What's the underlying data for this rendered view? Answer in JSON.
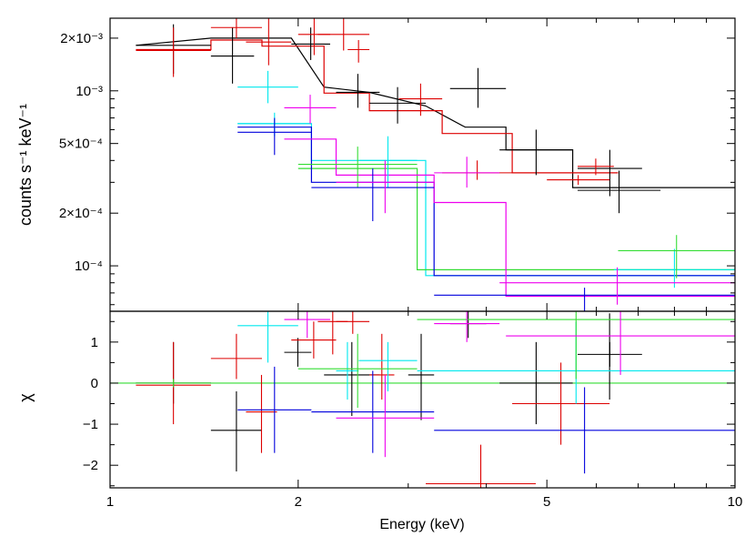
{
  "chart_data": {
    "type": "scatter",
    "xlabel": "Energy (keV)",
    "xscale": "log",
    "xlim": [
      1,
      10
    ],
    "xticks": [
      1,
      2,
      5,
      10
    ],
    "xtick_labels": [
      "1",
      "2",
      "5",
      "10"
    ],
    "top_panel": {
      "ylabel": "counts s⁻¹ keV⁻¹",
      "yscale": "log",
      "ylim": [
        5.5e-05,
        0.0026
      ],
      "yticks": [
        0.0001,
        0.0002,
        0.0005,
        0.001,
        0.002
      ],
      "ytick_labels": [
        "10⁻⁴",
        "2×10⁻⁴",
        "5×10⁻⁴",
        "10⁻³",
        "2×10⁻³"
      ],
      "series": [
        {
          "name": "black",
          "color": "#000000",
          "points": [
            [
              1.1,
              1.45,
              0.00182,
              0.00125,
              0.0024
            ],
            [
              1.45,
              1.7,
              0.00158,
              0.0011,
              0.0023
            ],
            [
              1.95,
              2.25,
              0.00185,
              0.0015,
              0.0023
            ],
            [
              2.3,
              2.7,
              0.00098,
              0.0008,
              0.00125
            ],
            [
              2.6,
              3.2,
              0.00085,
              0.00065,
              0.00105
            ],
            [
              3.5,
              4.3,
              0.00103,
              0.0008,
              0.00135
            ],
            [
              4.2,
              5.5,
              0.00046,
              0.00033,
              0.0006
            ],
            [
              5.6,
              7.6,
              0.00027,
              0.0002,
              0.00035
            ],
            [
              5.6,
              7.1,
              0.00036,
              0.00025,
              0.00046
            ]
          ],
          "model": [
            [
              1.1,
              0.00182
            ],
            [
              1.45,
              0.002
            ],
            [
              1.7,
              0.002
            ],
            [
              1.95,
              0.002
            ],
            [
              2.2,
              0.00105
            ],
            [
              2.6,
              0.00098
            ],
            [
              3.2,
              0.00082
            ],
            [
              3.7,
              0.00062
            ],
            [
              4.3,
              0.00062
            ],
            [
              4.3,
              0.00046
            ],
            [
              5.5,
              0.00046
            ],
            [
              5.5,
              0.00028
            ],
            [
              10,
              0.00028
            ]
          ]
        },
        {
          "name": "red",
          "color": "#dd0000",
          "points": [
            [
              1.1,
              1.45,
              0.0017,
              0.0012,
              0.0023
            ],
            [
              1.45,
              1.75,
              0.0023,
              0.002,
              0.0027
            ],
            [
              1.65,
              1.95,
              0.0019,
              0.0014,
              0.0026
            ],
            [
              2.0,
              2.25,
              0.0021,
              0.0016,
              0.003
            ],
            [
              2.15,
              2.6,
              0.0021,
              0.0017,
              0.0026
            ],
            [
              2.4,
              2.6,
              0.00172,
              0.00145,
              0.00195
            ],
            [
              2.9,
              3.4,
              0.0009,
              0.00072,
              0.0011
            ],
            [
              3.4,
              4.4,
              0.00034,
              0.00031,
              0.0004
            ],
            [
              5.6,
              6.4,
              0.00037,
              0.00033,
              0.00041
            ],
            [
              5.0,
              6.3,
              0.00031,
              0.00029,
              0.00033
            ]
          ],
          "model": [
            [
              1.1,
              0.00172
            ],
            [
              1.45,
              0.00172
            ],
            [
              1.45,
              0.00195
            ],
            [
              1.75,
              0.00195
            ],
            [
              1.75,
              0.0018
            ],
            [
              2.0,
              0.0018
            ],
            [
              2.2,
              0.0018
            ],
            [
              2.2,
              0.00097
            ],
            [
              2.6,
              0.00097
            ],
            [
              2.6,
              0.00077
            ],
            [
              3.4,
              0.00077
            ],
            [
              3.4,
              0.00057
            ],
            [
              4.4,
              0.00057
            ],
            [
              4.4,
              0.00034
            ],
            [
              6.5,
              0.00034
            ]
          ]
        },
        {
          "name": "cyan",
          "color": "#00e8ee",
          "points": [
            [
              1.6,
              2.0,
              0.00105,
              0.00085,
              0.0013
            ],
            [
              1.6,
              2.1,
              0.00065,
              0.00055,
              0.00075
            ],
            [
              2.5,
              3.1,
              0.0004,
              0.00028,
              0.00055
            ],
            [
              6.4,
              10,
              9.5e-05,
              7.5e-05,
              0.000125
            ]
          ],
          "model": [
            [
              1.6,
              0.00065
            ],
            [
              2.1,
              0.00065
            ],
            [
              2.1,
              0.0004
            ],
            [
              3.1,
              0.0004
            ],
            [
              3.2,
              0.0004
            ],
            [
              3.2,
              8.8e-05
            ],
            [
              10,
              8.8e-05
            ]
          ]
        },
        {
          "name": "green",
          "color": "#33dd33",
          "points": [
            [
              2.0,
              3.1,
              0.00038,
              0.00028,
              0.00048
            ],
            [
              6.5,
              10,
              0.000122,
              8.5e-05,
              0.00015
            ]
          ],
          "model": [
            [
              2.0,
              0.00036
            ],
            [
              3.1,
              0.00036
            ],
            [
              3.1,
              9.5e-05
            ],
            [
              10,
              9.5e-05
            ]
          ]
        },
        {
          "name": "blue",
          "color": "#0000dd",
          "points": [
            [
              1.6,
              2.1,
              0.00058,
              0.00043,
              0.0007
            ],
            [
              2.1,
              3.3,
              0.00028,
              0.00018,
              0.00036
            ],
            [
              3.3,
              10,
              6.8e-05,
              5.5e-05,
              7.5e-05
            ]
          ],
          "model": [
            [
              1.6,
              0.00062
            ],
            [
              2.1,
              0.00062
            ],
            [
              2.1,
              0.0003
            ],
            [
              3.3,
              0.0003
            ],
            [
              3.3,
              8.8e-05
            ],
            [
              10,
              8.8e-05
            ]
          ]
        },
        {
          "name": "magenta",
          "color": "#ee00ee",
          "points": [
            [
              1.9,
              2.3,
              0.0008,
              0.00065,
              0.00095
            ],
            [
              2.3,
              3.3,
              0.0003,
              0.0002,
              0.0004
            ],
            [
              3.3,
              4.2,
              0.00034,
              0.00028,
              0.00042
            ],
            [
              4.2,
              10,
              8e-05,
              6e-05,
              9.8e-05
            ]
          ],
          "model": [
            [
              1.9,
              0.00053
            ],
            [
              2.3,
              0.00053
            ],
            [
              2.3,
              0.00033
            ],
            [
              3.3,
              0.00033
            ],
            [
              3.3,
              0.00023
            ],
            [
              4.3,
              0.00023
            ],
            [
              4.3,
              6.7e-05
            ],
            [
              10,
              6.7e-05
            ]
          ]
        }
      ]
    },
    "bottom_panel": {
      "ylabel": "χ",
      "ylim": [
        -2.55,
        1.75
      ],
      "yticks": [
        -2,
        -1,
        0,
        1
      ],
      "ytick_labels": [
        "−2",
        "−1",
        "0",
        "1"
      ],
      "zero_line": 0,
      "series": [
        {
          "name": "black",
          "color": "#000000",
          "points": [
            [
              1.1,
              1.45,
              0.0,
              -0.5,
              1.0
            ],
            [
              1.45,
              1.75,
              -1.15,
              -2.15,
              -0.2
            ],
            [
              1.9,
              2.1,
              0.75,
              0.4,
              1.1
            ],
            [
              2.2,
              2.7,
              0.2,
              -0.8,
              1.0
            ],
            [
              3.0,
              3.3,
              0.2,
              -0.9,
              1.2
            ],
            [
              3.5,
              4.0,
              1.45,
              1.1,
              1.8
            ],
            [
              4.2,
              5.5,
              0.0,
              -1.0,
              1.0
            ],
            [
              5.6,
              7.1,
              0.7,
              0.4,
              1.0
            ],
            [
              6.3,
              6.3,
              0.7,
              -0.4,
              1.7
            ]
          ]
        },
        {
          "name": "red",
          "color": "#dd0000",
          "points": [
            [
              1.1,
              1.45,
              -0.05,
              -1.0,
              1.0
            ],
            [
              1.45,
              1.75,
              0.6,
              0.1,
              1.2
            ],
            [
              1.65,
              1.85,
              -0.7,
              -1.7,
              0.2
            ],
            [
              1.95,
              2.3,
              1.05,
              0.6,
              1.5
            ],
            [
              2.15,
              2.4,
              1.5,
              0.7,
              1.8
            ],
            [
              2.3,
              2.6,
              1.5,
              1.2,
              1.8
            ],
            [
              2.6,
              2.85,
              0.2,
              -0.4,
              1.2
            ],
            [
              3.2,
              4.8,
              -2.45,
              -3.0,
              -1.5
            ],
            [
              4.4,
              6.3,
              -0.5,
              -1.5,
              0.5
            ]
          ]
        },
        {
          "name": "cyan",
          "color": "#00e8ee",
          "points": [
            [
              1.6,
              2.0,
              1.4,
              0.5,
              1.8
            ],
            [
              2.3,
              2.5,
              0.3,
              -0.4,
              1.0
            ],
            [
              2.5,
              3.1,
              0.55,
              -0.2,
              1.0
            ],
            [
              3.1,
              10,
              0.3,
              -0.5,
              1.5
            ]
          ]
        },
        {
          "name": "green",
          "color": "#33dd33",
          "points": [
            [
              1.1,
              1.45,
              0.0,
              -0.1,
              0.1
            ],
            [
              2.0,
              3.1,
              0.35,
              -0.6,
              1.2
            ],
            [
              3.1,
              10,
              1.55,
              0.1,
              1.8
            ]
          ]
        },
        {
          "name": "blue",
          "color": "#0000dd",
          "points": [
            [
              1.6,
              2.1,
              -0.65,
              -1.7,
              0.4
            ],
            [
              2.1,
              3.3,
              -0.7,
              -1.7,
              0.3
            ],
            [
              3.3,
              10,
              -1.15,
              -2.2,
              -0.1
            ]
          ]
        },
        {
          "name": "magenta",
          "color": "#ee00ee",
          "points": [
            [
              1.9,
              2.25,
              1.55,
              1.1,
              1.8
            ],
            [
              2.3,
              3.3,
              -0.85,
              -1.8,
              0.2
            ],
            [
              3.3,
              4.2,
              1.45,
              1.0,
              1.8
            ],
            [
              4.3,
              10,
              1.15,
              0.2,
              1.8
            ]
          ]
        }
      ]
    }
  }
}
